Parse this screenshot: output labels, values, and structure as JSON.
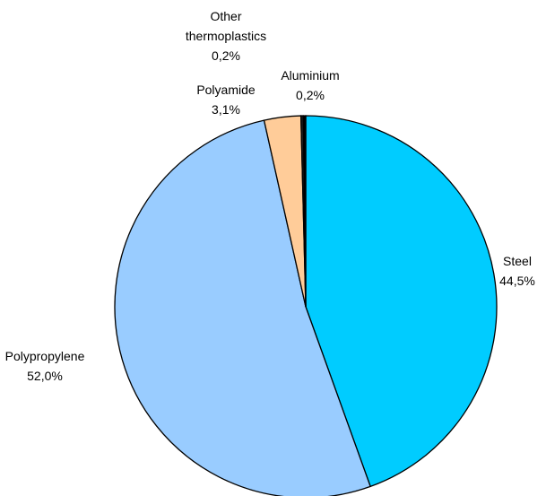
{
  "chart_data": {
    "type": "pie",
    "title": "",
    "slices": [
      {
        "name": "Steel",
        "value": 44.5,
        "label": "44,5%",
        "color": "#00ccff"
      },
      {
        "name": "Polypropylene",
        "value": 52.0,
        "label": "52,0%",
        "color": "#99ccff"
      },
      {
        "name": "Polyamide",
        "value": 3.1,
        "label": "3,1%",
        "color": "#ffcc99"
      },
      {
        "name": "Other thermoplastics",
        "name_lines": [
          "Other",
          "thermoplastics"
        ],
        "value": 0.2,
        "label": "0,2%",
        "color": "#1f1f1f"
      },
      {
        "name": "Aluminium",
        "value": 0.2,
        "label": "0,2%",
        "color": "#000000"
      }
    ],
    "start": "12 o'clock",
    "direction": "clockwise",
    "legend": "none",
    "data_labels": "outside"
  }
}
